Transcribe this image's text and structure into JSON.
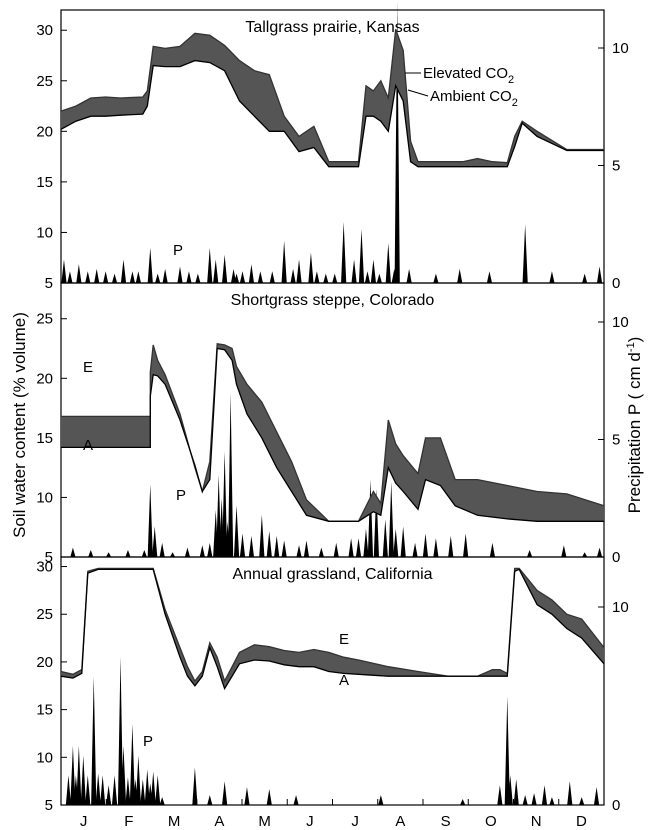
{
  "figure": {
    "y_axis_left_label": "Soil water content (% volume)",
    "y_axis_right_label_main": "Precipitation P ( cm d",
    "y_axis_right_label_sup": "-1",
    "y_axis_right_label_close": ")",
    "months": [
      "J",
      "F",
      "M",
      "A",
      "M",
      "J",
      "J",
      "A",
      "S",
      "O",
      "N",
      "D"
    ]
  },
  "chart_data": [
    {
      "type": "area",
      "title": "Tallgrass prairie, Kansas",
      "ylim": [
        5,
        32
      ],
      "yticks": [
        5,
        10,
        15,
        20,
        25,
        30
      ],
      "y2lim": [
        0,
        13
      ],
      "y2ticks": [
        0,
        5,
        10
      ],
      "x_unit": "day of year",
      "xlim": [
        0,
        365
      ],
      "annotations": {
        "elevated_main": "Elevated CO",
        "elevated_sub": "2",
        "ambient_main": "Ambient CO",
        "ambient_sub": "2",
        "precip": "P"
      },
      "series": [
        {
          "name": "Elevated CO2",
          "x": [
            0,
            10,
            20,
            30,
            40,
            55,
            58,
            62,
            70,
            80,
            90,
            100,
            110,
            120,
            130,
            140,
            150,
            160,
            170,
            180,
            190,
            200,
            205,
            210,
            215,
            220,
            225,
            230,
            235,
            240,
            250,
            260,
            270,
            280,
            290,
            300,
            305,
            310,
            320,
            340,
            365
          ],
          "y": [
            22,
            22.5,
            23.3,
            23.4,
            23.3,
            23.4,
            24,
            28.4,
            28.2,
            28.4,
            29.7,
            29.5,
            28.5,
            27,
            26,
            25.6,
            21.5,
            19.5,
            20.5,
            17,
            17,
            17,
            24.5,
            24,
            25,
            23.3,
            30.1,
            28,
            19,
            17,
            17,
            17,
            17,
            17.3,
            17,
            16.9,
            19.5,
            21,
            20,
            18.2,
            18.2
          ]
        },
        {
          "name": "Ambient CO2",
          "x": [
            0,
            10,
            20,
            30,
            40,
            55,
            58,
            62,
            70,
            80,
            90,
            100,
            110,
            120,
            130,
            140,
            150,
            160,
            170,
            180,
            190,
            200,
            205,
            210,
            215,
            220,
            225,
            230,
            235,
            240,
            250,
            260,
            270,
            280,
            290,
            300,
            305,
            310,
            320,
            340,
            365
          ],
          "y": [
            20.2,
            21,
            21.5,
            21.5,
            21.6,
            21.7,
            22.5,
            26.5,
            26.4,
            26.4,
            27,
            26.8,
            26,
            23,
            21.5,
            20,
            20,
            18,
            18.4,
            16.5,
            16.5,
            16.5,
            21.5,
            21.5,
            21,
            20,
            24.5,
            23,
            17,
            16.5,
            16.5,
            16.5,
            16.5,
            16.5,
            16.5,
            16.5,
            18.5,
            20.8,
            19.5,
            18.1,
            18.1
          ]
        }
      ],
      "precip_cm_per_day": {
        "days": [
          2,
          6,
          12,
          18,
          24,
          30,
          36,
          42,
          48,
          52,
          60,
          65,
          70,
          80,
          86,
          92,
          100,
          104,
          110,
          116,
          118,
          122,
          128,
          134,
          142,
          150,
          156,
          160,
          168,
          172,
          178,
          184,
          190,
          197,
          202,
          206,
          210,
          214,
          220,
          224,
          226,
          234,
          252,
          268,
          288,
          312,
          330,
          352,
          362
        ],
        "values": [
          1,
          0.5,
          0.8,
          0.5,
          0.6,
          0.5,
          0.4,
          1,
          0.5,
          0.5,
          1.5,
          0.4,
          0.6,
          0.7,
          0.5,
          0.4,
          1.5,
          1,
          1.2,
          0.6,
          0.4,
          0.5,
          0.8,
          0.5,
          0.5,
          1.8,
          0.6,
          1,
          1.3,
          0.5,
          0.4,
          0.4,
          2.6,
          1,
          2.3,
          0.5,
          1,
          0.4,
          1.7,
          0.6,
          12,
          0.6,
          0.4,
          0.6,
          0.5,
          2.5,
          0.5,
          0.4,
          0.7
        ]
      }
    },
    {
      "type": "area",
      "title": "Shortgrass steppe, Colorado",
      "ylim": [
        5,
        28
      ],
      "yticks": [
        5,
        10,
        15,
        20,
        25
      ],
      "y2lim": [
        0,
        13
      ],
      "y2ticks": [
        0,
        5,
        10
      ],
      "x_unit": "day of year",
      "xlim": [
        0,
        365
      ],
      "annotations": {
        "elevated": "E",
        "ambient": "A",
        "precip": "P"
      },
      "series": [
        {
          "name": "E",
          "x": [
            0,
            60,
            60,
            62,
            65,
            70,
            80,
            90,
            95,
            100,
            105,
            110,
            115,
            118,
            125,
            135,
            145,
            155,
            165,
            180,
            200,
            210,
            215,
            220,
            225,
            230,
            240,
            245,
            255,
            265,
            280,
            300,
            320,
            340,
            365
          ],
          "y": [
            16.8,
            16.8,
            20.5,
            22.8,
            21.5,
            20.3,
            17,
            12.5,
            10.5,
            13,
            22.9,
            22.8,
            22.5,
            21,
            19.5,
            18,
            15.5,
            13,
            9.8,
            8,
            8,
            10.5,
            9.5,
            16.5,
            14.5,
            13.5,
            12,
            15,
            15,
            11.5,
            11.5,
            11,
            10.5,
            10.3,
            9.3
          ]
        },
        {
          "name": "A",
          "x": [
            0,
            60,
            60,
            62,
            65,
            70,
            80,
            90,
            95,
            100,
            105,
            110,
            115,
            118,
            125,
            135,
            145,
            155,
            165,
            180,
            200,
            210,
            215,
            220,
            225,
            230,
            240,
            245,
            255,
            265,
            280,
            300,
            320,
            340,
            365
          ],
          "y": [
            14.2,
            14.2,
            18.5,
            20.3,
            20.2,
            19.5,
            16.5,
            12.7,
            10.5,
            11.5,
            22.5,
            22.4,
            21.5,
            19.5,
            17,
            15,
            12.5,
            10.5,
            8.5,
            8,
            8,
            8.8,
            8.5,
            12.5,
            11.2,
            10.5,
            9,
            11.5,
            11,
            9.3,
            8.5,
            8.2,
            8,
            8,
            8
          ]
        }
      ],
      "precip_cm_per_day": {
        "days": [
          8,
          20,
          32,
          45,
          56,
          60,
          63,
          68,
          75,
          85,
          95,
          100,
          104,
          106,
          108,
          110,
          112,
          114,
          118,
          122,
          128,
          135,
          140,
          145,
          150,
          160,
          165,
          175,
          185,
          195,
          200,
          205,
          208,
          212,
          218,
          222,
          225,
          230,
          238,
          245,
          252,
          262,
          272,
          290,
          315,
          338,
          352,
          362
        ],
        "values": [
          0.4,
          0.3,
          0.2,
          0.3,
          0.3,
          3.1,
          1.3,
          0.6,
          0.2,
          0.4,
          0.5,
          0.6,
          2,
          3.5,
          2.5,
          4.5,
          1.5,
          7,
          2.2,
          1,
          0.9,
          1.8,
          1.1,
          0.9,
          0.7,
          0.5,
          0.7,
          0.4,
          0.6,
          0.8,
          0.8,
          1.2,
          3.3,
          2.9,
          1.6,
          3.2,
          1.2,
          1.3,
          0.6,
          1,
          0.8,
          0.9,
          1,
          0.6,
          0.3,
          0.5,
          0.2,
          0.4
        ]
      }
    },
    {
      "type": "area",
      "title": "Annual grassland, California",
      "ylim": [
        5,
        31
      ],
      "yticks": [
        5,
        10,
        15,
        20,
        25,
        30
      ],
      "y2lim": [
        0,
        13
      ],
      "y2ticks": [
        0,
        10
      ],
      "x_unit": "day of year",
      "xlim": [
        0,
        365
      ],
      "annotations": {
        "elevated": "E",
        "ambient": "A",
        "precip": "P"
      },
      "series": [
        {
          "name": "E",
          "x": [
            0,
            8,
            14,
            18,
            25,
            35,
            45,
            55,
            62,
            70,
            80,
            85,
            90,
            95,
            100,
            105,
            110,
            115,
            120,
            130,
            140,
            150,
            160,
            170,
            180,
            190,
            200,
            220,
            240,
            260,
            280,
            290,
            295,
            300,
            305,
            308,
            320,
            330,
            340,
            350,
            365
          ],
          "y": [
            19,
            18.7,
            19.2,
            29.5,
            29.8,
            29.8,
            29.8,
            29.8,
            29.8,
            25.5,
            21.5,
            19.5,
            18,
            19,
            22,
            20.5,
            18,
            19.5,
            21,
            21.8,
            21.6,
            21.2,
            21,
            21.3,
            21,
            20.5,
            20.2,
            19.5,
            19,
            18.5,
            18.5,
            19.2,
            19.2,
            18.8,
            29.8,
            29.8,
            27.5,
            26.5,
            25,
            24.5,
            21.5
          ]
        },
        {
          "name": "A",
          "x": [
            0,
            8,
            14,
            18,
            25,
            35,
            45,
            55,
            62,
            70,
            80,
            85,
            90,
            95,
            100,
            105,
            110,
            115,
            120,
            130,
            140,
            150,
            160,
            170,
            180,
            190,
            200,
            220,
            240,
            260,
            280,
            290,
            295,
            300,
            305,
            308,
            320,
            330,
            340,
            350,
            365
          ],
          "y": [
            18.5,
            18.3,
            18.8,
            29.3,
            29.7,
            29.7,
            29.7,
            29.7,
            29.7,
            25,
            20.5,
            18.5,
            17.5,
            18.5,
            21.5,
            19.5,
            17.2,
            18.5,
            19.8,
            20.2,
            20.1,
            19.7,
            19.5,
            19.5,
            19,
            18.8,
            18.7,
            18.5,
            18.5,
            18.5,
            18.5,
            18.5,
            18.5,
            18.5,
            29.5,
            29.7,
            26,
            25,
            23.5,
            22.5,
            19.8
          ]
        }
      ],
      "precip_cm_per_day": {
        "days": [
          5,
          8,
          10,
          12,
          15,
          18,
          22,
          25,
          28,
          32,
          36,
          40,
          42,
          45,
          48,
          50,
          52,
          55,
          58,
          60,
          62,
          65,
          68,
          90,
          100,
          110,
          125,
          140,
          158,
          215,
          270,
          295,
          300,
          302,
          306,
          312,
          318,
          325,
          330,
          342,
          350,
          360
        ],
        "values": [
          1.5,
          3,
          1.5,
          3,
          2.5,
          1.5,
          6.5,
          1.6,
          1.5,
          1,
          1.5,
          7.5,
          3,
          1.4,
          4.1,
          1.3,
          2.5,
          1.3,
          1.8,
          1.1,
          1.7,
          1.5,
          0.4,
          1.9,
          0.5,
          1.2,
          0.9,
          0.8,
          0.5,
          0.5,
          0.3,
          1,
          5.5,
          1.5,
          1.3,
          0.5,
          0.6,
          1,
          0.4,
          1.2,
          0.4,
          0.9
        ]
      }
    }
  ]
}
